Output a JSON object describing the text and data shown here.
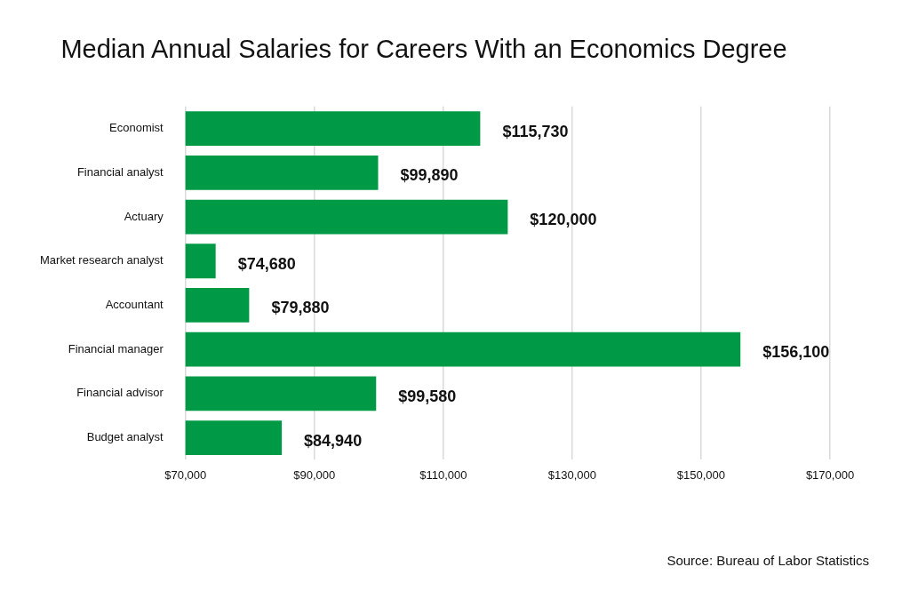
{
  "chart_data": {
    "type": "bar",
    "orientation": "horizontal",
    "title": "Median Annual Salaries for Careers With an Economics Degree",
    "categories": [
      "Economist",
      "Financial analyst",
      "Actuary",
      "Market research analyst",
      "Accountant",
      "Financial manager",
      "Financial advisor",
      "Budget analyst"
    ],
    "values": [
      115730,
      99890,
      120000,
      74680,
      79880,
      156100,
      99580,
      84940
    ],
    "color": "#009a47",
    "xlim": [
      70000,
      170000
    ],
    "xticks": [
      {
        "value": 70000,
        "label": "$70,000"
      },
      {
        "value": 90000,
        "label": "$90,000"
      },
      {
        "value": 110000,
        "label": "$110,000"
      },
      {
        "value": 130000,
        "label": "$130,000"
      },
      {
        "value": 150000,
        "label": "$150,000"
      },
      {
        "value": 170000,
        "label": "$170,000"
      }
    ],
    "grid": "x",
    "legend": false,
    "data_labels": true,
    "value_labels": [
      "$115,730",
      "$99,890",
      "$120,000",
      "$74,680",
      "$79,880",
      "$156,100",
      "$99,580",
      "$84,940"
    ],
    "annotations": [
      "Source: Bureau of Labor Statistics"
    ]
  }
}
